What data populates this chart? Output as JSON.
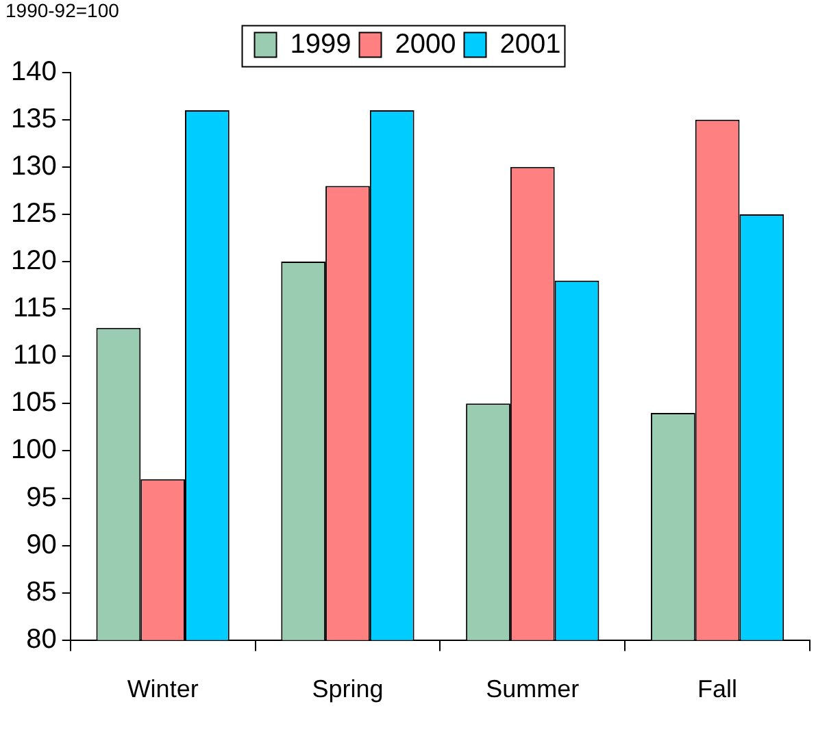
{
  "chart_data": {
    "type": "bar",
    "subtitle": "1990-92=100",
    "categories": [
      "Winter",
      "Spring",
      "Summer",
      "Fall"
    ],
    "series": [
      {
        "name": "1999",
        "color": "#99ccb0",
        "values": [
          113,
          120,
          105,
          104
        ]
      },
      {
        "name": "2000",
        "color": "#ff8080",
        "values": [
          97,
          128,
          130,
          135
        ]
      },
      {
        "name": "2001",
        "color": "#00ccff",
        "values": [
          136,
          136,
          118,
          125
        ]
      }
    ],
    "ylim": [
      80,
      140
    ],
    "yticks": [
      80,
      85,
      90,
      95,
      100,
      105,
      110,
      115,
      120,
      125,
      130,
      135,
      140
    ],
    "legend": "top"
  }
}
